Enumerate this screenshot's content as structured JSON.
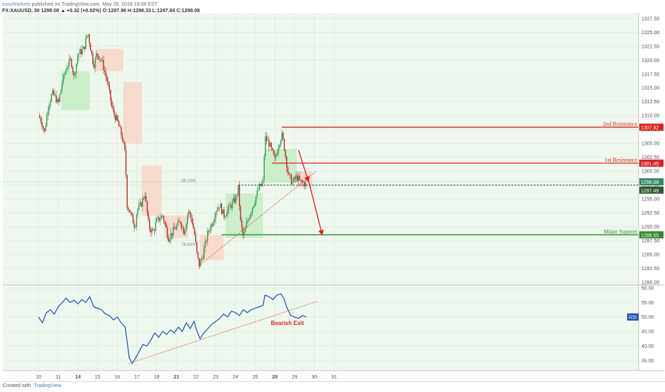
{
  "header": {
    "publisher": "easyMarkets",
    "published_line": "published on TradingView.com, May 28, 2018 19:06 EST",
    "symbol_line": "FX:XAUUSD, 30  1298.08  ▲ +0.32 (+0.02%)  O:1297.96  H:1298.33  L:1297.60  C:1298.08"
  },
  "footer": {
    "created_with": "Created with",
    "brand": "TradingView"
  },
  "colors": {
    "background": "#eff8ee",
    "candle_up": "#2e9e4f",
    "candle_down": "#c0272d",
    "rsi_line": "#1f4fb5",
    "resistance": "#dd2222",
    "support": "#2f8a2f",
    "trendline": "#e03a3a",
    "cloud_bull": "#c6ecc3",
    "cloud_bear": "#f7d6c8"
  },
  "chart_data": [
    {
      "type": "candlestick",
      "title": "",
      "xlabel": "",
      "ylabel": "",
      "ylim": [
        1279.5,
        1328.5
      ],
      "x_ticks": [
        "10",
        "11",
        "14",
        "15",
        "16",
        "17",
        "18",
        "21",
        "22",
        "23",
        "24",
        "25",
        "28",
        "29",
        "30",
        "31"
      ],
      "bold_ticks": [
        "14",
        "21",
        "28"
      ],
      "y_ticks": [
        1280.0,
        1282.5,
        1285.0,
        1287.5,
        1290.0,
        1292.5,
        1295.0,
        1297.5,
        1300.0,
        1302.5,
        1305.0,
        1307.5,
        1310.0,
        1312.5,
        1315.0,
        1317.5,
        1320.0,
        1322.5,
        1325.0,
        1327.5
      ],
      "close_path": [
        [
          0.0,
          1310
        ],
        [
          0.15,
          1309
        ],
        [
          0.3,
          1307
        ],
        [
          0.5,
          1312
        ],
        [
          0.7,
          1314
        ],
        [
          0.9,
          1313
        ],
        [
          1.0,
          1312
        ],
        [
          1.2,
          1316
        ],
        [
          1.45,
          1319
        ],
        [
          1.65,
          1320
        ],
        [
          1.8,
          1317
        ],
        [
          2.0,
          1321
        ],
        [
          2.3,
          1322
        ],
        [
          2.5,
          1325
        ],
        [
          2.65,
          1322
        ],
        [
          2.8,
          1319
        ],
        [
          2.95,
          1321
        ],
        [
          3.0,
          1321
        ],
        [
          3.2,
          1320
        ],
        [
          3.5,
          1316
        ],
        [
          3.75,
          1311
        ],
        [
          4.0,
          1309
        ],
        [
          4.25,
          1306
        ],
        [
          4.4,
          1303
        ],
        [
          4.5,
          1294
        ],
        [
          4.7,
          1292
        ],
        [
          4.9,
          1290
        ],
        [
          5.0,
          1293
        ],
        [
          5.2,
          1294
        ],
        [
          5.4,
          1296
        ],
        [
          5.6,
          1290
        ],
        [
          5.8,
          1289
        ],
        [
          6.0,
          1291
        ],
        [
          6.3,
          1292
        ],
        [
          6.6,
          1288
        ],
        [
          6.8,
          1289
        ],
        [
          7.0,
          1290
        ],
        [
          7.2,
          1291
        ],
        [
          7.4,
          1289
        ],
        [
          7.6,
          1293
        ],
        [
          7.8,
          1291
        ],
        [
          7.95,
          1288
        ],
        [
          8.0,
          1286
        ],
        [
          8.15,
          1283
        ],
        [
          8.35,
          1285
        ],
        [
          8.6,
          1289
        ],
        [
          8.85,
          1291
        ],
        [
          9.0,
          1293
        ],
        [
          9.2,
          1294
        ],
        [
          9.4,
          1292
        ],
        [
          9.6,
          1293
        ],
        [
          9.8,
          1294
        ],
        [
          10.0,
          1295
        ],
        [
          10.15,
          1297
        ],
        [
          10.25,
          1291
        ],
        [
          10.4,
          1288
        ],
        [
          10.6,
          1291
        ],
        [
          10.8,
          1293
        ],
        [
          11.0,
          1295
        ],
        [
          11.2,
          1297
        ],
        [
          11.4,
          1298
        ],
        [
          11.5,
          1306
        ],
        [
          11.7,
          1305
        ],
        [
          11.9,
          1303
        ],
        [
          12.0,
          1302
        ],
        [
          12.2,
          1305
        ],
        [
          12.35,
          1306.5
        ],
        [
          12.45,
          1305
        ],
        [
          12.55,
          1302.5
        ],
        [
          12.7,
          1299
        ],
        [
          12.9,
          1298
        ],
        [
          13.1,
          1299
        ],
        [
          13.3,
          1298
        ],
        [
          13.45,
          1298
        ],
        [
          13.6,
          1297.5
        ]
      ],
      "ichimoku_cloud": [
        {
          "x": [
            1.15,
            2.6
          ],
          "lo": 1311.0,
          "hi": 1318.0,
          "kind": "bull"
        },
        {
          "x": [
            2.9,
            4.3
          ],
          "lo": 1318.0,
          "hi": 1322.0,
          "kind": "bear"
        },
        {
          "x": [
            4.3,
            5.25
          ],
          "lo": 1305.0,
          "hi": 1316.0,
          "kind": "bear"
        },
        {
          "x": [
            5.25,
            6.25
          ],
          "lo": 1292.0,
          "hi": 1301.0,
          "kind": "bear"
        },
        {
          "x": [
            6.4,
            7.6
          ],
          "lo": 1288.0,
          "hi": 1292.0,
          "kind": "bear"
        },
        {
          "x": [
            8.2,
            9.4
          ],
          "lo": 1284.0,
          "hi": 1288.5,
          "kind": "bear"
        },
        {
          "x": [
            9.5,
            11.4
          ],
          "lo": 1288.0,
          "hi": 1296.0,
          "kind": "bull"
        },
        {
          "x": [
            11.5,
            13.1
          ],
          "lo": 1298.0,
          "hi": 1304.0,
          "kind": "bull"
        },
        {
          "x": [
            13.2,
            13.9
          ],
          "lo": 1297.0,
          "hi": 1300.0,
          "kind": "bear"
        }
      ],
      "levels": [
        {
          "label": "2nd Resistance",
          "price": 1307.92,
          "price_label": "1307.92",
          "x_start": 12.35,
          "color": "#dd2222"
        },
        {
          "label": "1st Resistance",
          "price": 1301.45,
          "price_label": "1301.45",
          "x_start": 11.85,
          "color": "#dd2222"
        },
        {
          "label": "Major Support",
          "price": 1288.55,
          "price_label": "1288.55",
          "x_start": 9.3,
          "color": "#2f8a2f"
        }
      ],
      "current_price": {
        "price": 1298.08,
        "label": "1298.08"
      },
      "dashed_level": {
        "price": 1297.49,
        "label": "1297.49",
        "x_start": 10.15
      },
      "fibonacci": [
        {
          "label": "38.20%",
          "price": 1298.3
        },
        {
          "label": "78.60%",
          "price": 1286.8
        }
      ],
      "trendline": {
        "from": [
          8.15,
          1283.0
        ],
        "to": [
          14.1,
          1300.0
        ]
      },
      "projection_arrows": [
        {
          "from": [
            13.65,
            1299.2
          ],
          "to": [
            14.4,
            1288.6
          ]
        },
        {
          "from": [
            13.2,
            1303.8
          ],
          "to": [
            13.7,
            1298.2
          ]
        }
      ]
    },
    {
      "type": "line",
      "title": "",
      "indicator": "RSI",
      "ylim": [
        31.5,
        60.5
      ],
      "y_ticks": [
        35.0,
        40.0,
        45.0,
        50.0,
        55.0,
        60.0
      ],
      "series": [
        {
          "name": "RSI",
          "points": [
            [
              0.0,
              50.0
            ],
            [
              0.2,
              48.0
            ],
            [
              0.4,
              51.5
            ],
            [
              0.6,
              52.5
            ],
            [
              0.8,
              51.0
            ],
            [
              1.0,
              53.5
            ],
            [
              1.2,
              55.0
            ],
            [
              1.4,
              56.5
            ],
            [
              1.6,
              55.0
            ],
            [
              1.8,
              55.8
            ],
            [
              2.0,
              54.5
            ],
            [
              2.2,
              56.0
            ],
            [
              2.4,
              55.0
            ],
            [
              2.6,
              57.0
            ],
            [
              2.8,
              53.5
            ],
            [
              3.0,
              53.0
            ],
            [
              3.2,
              52.5
            ],
            [
              3.4,
              51.0
            ],
            [
              3.6,
              50.5
            ],
            [
              3.8,
              49.0
            ],
            [
              4.0,
              50.0
            ],
            [
              4.2,
              48.0
            ],
            [
              4.4,
              46.5
            ],
            [
              4.5,
              41.5
            ],
            [
              4.6,
              36.0
            ],
            [
              4.75,
              34.0
            ],
            [
              4.9,
              35.5
            ],
            [
              5.1,
              38.0
            ],
            [
              5.3,
              40.5
            ],
            [
              5.5,
              40.0
            ],
            [
              5.7,
              42.0
            ],
            [
              5.9,
              44.5
            ],
            [
              6.1,
              43.0
            ],
            [
              6.3,
              45.0
            ],
            [
              6.5,
              44.0
            ],
            [
              6.7,
              45.5
            ],
            [
              6.9,
              44.5
            ],
            [
              7.1,
              46.5
            ],
            [
              7.3,
              45.0
            ],
            [
              7.5,
              48.0
            ],
            [
              7.7,
              46.0
            ],
            [
              7.9,
              48.5
            ],
            [
              8.0,
              46.0
            ],
            [
              8.2,
              42.5
            ],
            [
              8.4,
              44.5
            ],
            [
              8.6,
              46.0
            ],
            [
              8.8,
              47.5
            ],
            [
              9.0,
              48.5
            ],
            [
              9.2,
              49.5
            ],
            [
              9.4,
              51.0
            ],
            [
              9.6,
              50.0
            ],
            [
              9.8,
              52.0
            ],
            [
              10.0,
              51.5
            ],
            [
              10.2,
              50.5
            ],
            [
              10.4,
              52.5
            ],
            [
              10.6,
              51.5
            ],
            [
              10.8,
              52.5
            ],
            [
              11.0,
              53.0
            ],
            [
              11.2,
              53.5
            ],
            [
              11.4,
              54.0
            ],
            [
              11.5,
              57.5
            ],
            [
              11.7,
              57.0
            ],
            [
              11.9,
              56.0
            ],
            [
              12.1,
              57.5
            ],
            [
              12.3,
              58.0
            ],
            [
              12.45,
              56.5
            ],
            [
              12.6,
              53.5
            ],
            [
              12.8,
              50.5
            ],
            [
              13.0,
              50.0
            ],
            [
              13.2,
              49.5
            ],
            [
              13.4,
              50.5
            ],
            [
              13.6,
              50.0
            ]
          ]
        }
      ],
      "annotation": "Bearish Exit",
      "trendline": {
        "from": [
          4.6,
          34.0
        ],
        "to": [
          14.2,
          55.5
        ]
      }
    }
  ]
}
